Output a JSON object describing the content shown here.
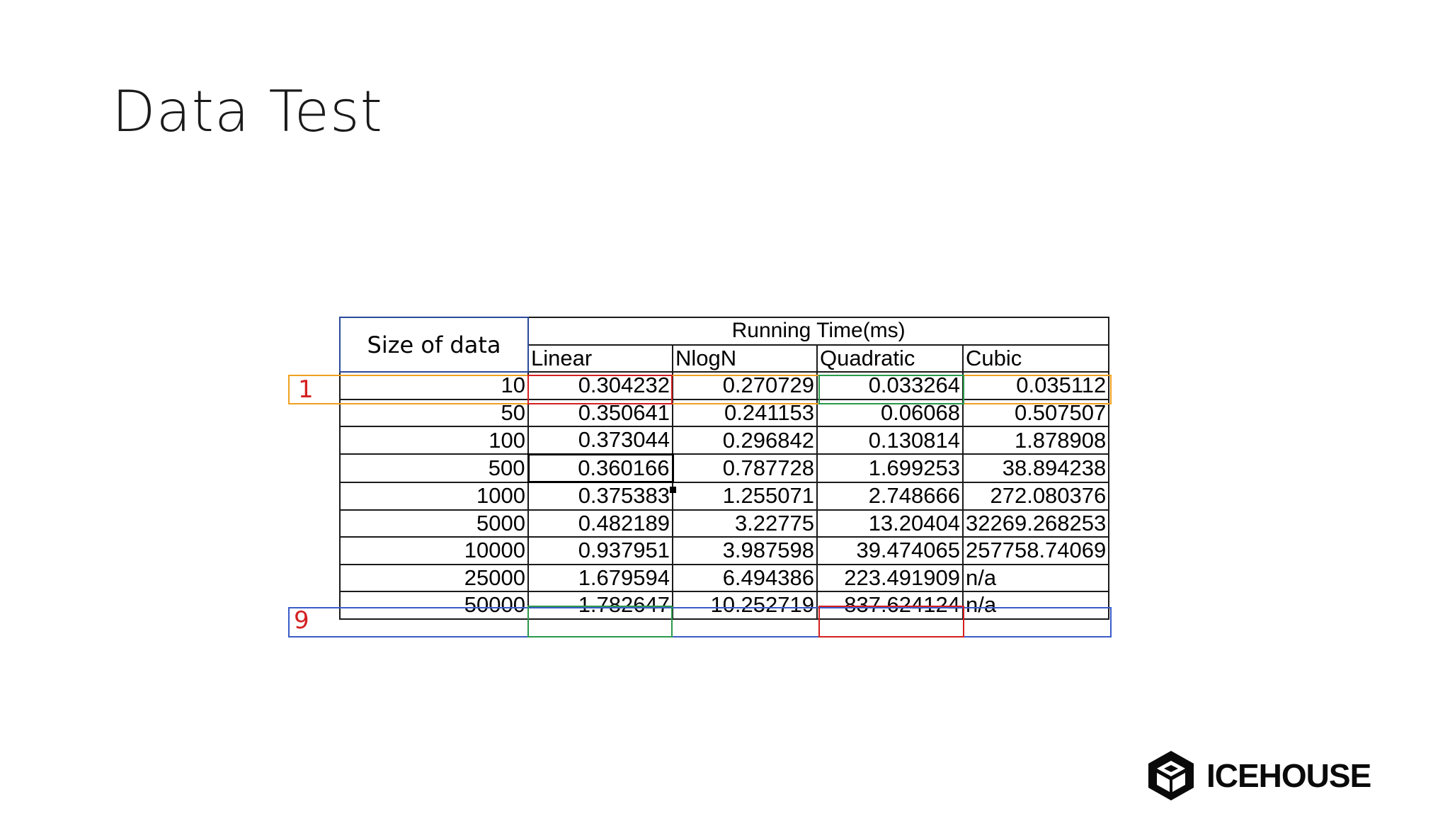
{
  "slide": {
    "title": "Data Test",
    "logo_text": "ICEHOUSE"
  },
  "table": {
    "size_header": "Size of data",
    "group_header": "Running Time(ms)",
    "columns": [
      "Linear",
      "NlogN",
      "Quadratic",
      "Cubic"
    ],
    "rows": [
      [
        "10",
        "0.304232",
        "0.270729",
        "0.033264",
        "0.035112"
      ],
      [
        "50",
        "0.350641",
        "0.241153",
        "0.06068",
        "0.507507"
      ],
      [
        "100",
        "0.373044",
        "0.296842",
        "0.130814",
        "1.878908"
      ],
      [
        "500",
        "0.360166",
        "0.787728",
        "1.699253",
        "38.894238"
      ],
      [
        "1000",
        "0.375383",
        "1.255071",
        "2.748666",
        "272.080376"
      ],
      [
        "5000",
        "0.482189",
        "3.22775",
        "13.20404",
        "32269.268253"
      ],
      [
        "10000",
        "0.937951",
        "3.987598",
        "39.474065",
        "257758.74069"
      ],
      [
        "25000",
        "1.679594",
        "6.494386",
        "223.491909",
        "n/a"
      ],
      [
        "50000",
        "1.782647",
        "10.252719",
        "837.624124",
        "n/a"
      ]
    ]
  },
  "markers": {
    "first": "1",
    "last": "9"
  },
  "colors": {
    "red": "#d42020",
    "orange": "#f0a020",
    "green": "#2a9a4a",
    "blue": "#3a5cc8"
  }
}
